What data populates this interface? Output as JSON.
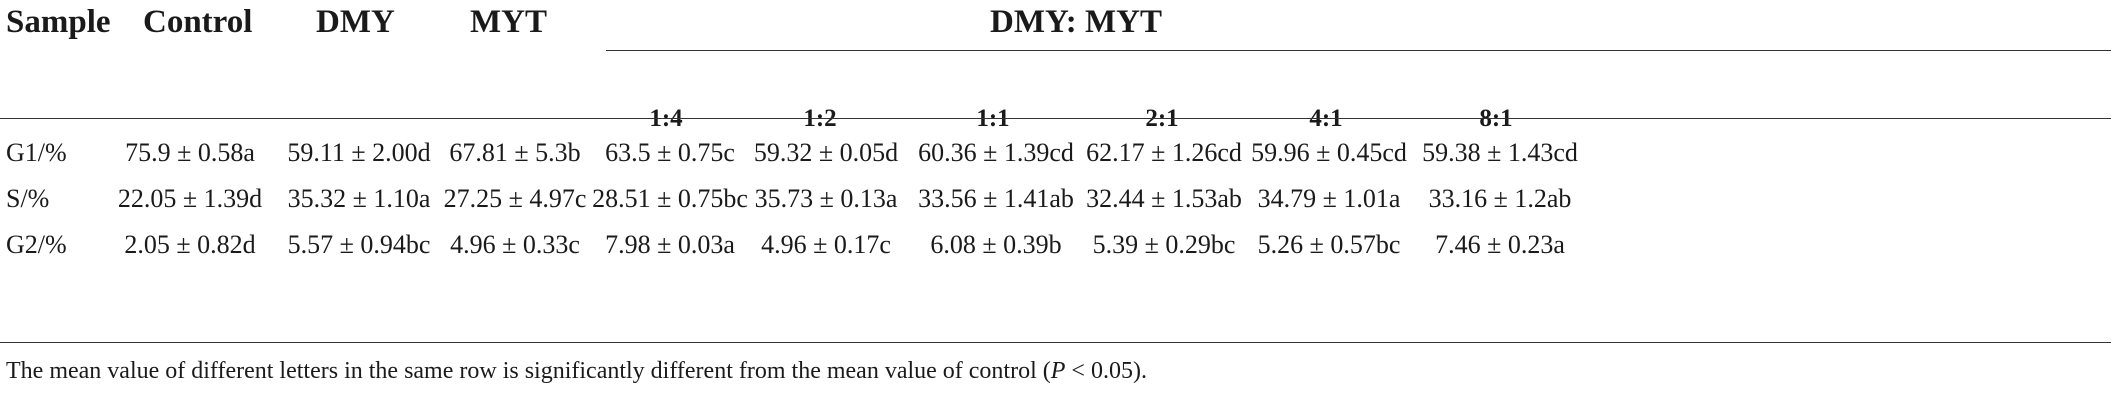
{
  "table": {
    "headers": {
      "sample": "Sample",
      "control": "Control",
      "dmy": "DMY",
      "myt": "MYT",
      "group": "DMY: MYT"
    },
    "ratios": [
      "1:4",
      "1:2",
      "1:1",
      "2:1",
      "4:1",
      "8:1"
    ],
    "rows": [
      {
        "label": "G1/%",
        "values": [
          "75.9 ± 0.58a",
          "59.11 ± 2.00d",
          "67.81 ± 5.3b",
          "63.5 ± 0.75c",
          "59.32 ± 0.05d",
          "60.36 ± 1.39cd",
          "62.17 ± 1.26cd",
          "59.96 ± 0.45cd",
          "59.38 ± 1.43cd"
        ]
      },
      {
        "label": "S/%",
        "values": [
          "22.05 ± 1.39d",
          "35.32 ± 1.10a",
          "27.25 ± 4.97c",
          "28.51 ± 0.75bc",
          "35.73 ± 0.13a",
          "33.56 ± 1.41ab",
          "32.44 ± 1.53ab",
          "34.79 ± 1.01a",
          "33.16 ± 1.2ab"
        ]
      },
      {
        "label": "G2/%",
        "values": [
          "2.05 ± 0.82d",
          "5.57 ± 0.94bc",
          "4.96 ± 0.33c",
          "7.98 ± 0.03a",
          "4.96 ± 0.17c",
          "6.08 ± 0.39b",
          "5.39 ± 0.29bc",
          "5.26 ± 0.57bc",
          "7.46 ± 0.23a"
        ]
      }
    ],
    "footnote": {
      "text": "The mean value of different letters in the same row is significantly different from the mean value of control (",
      "p_symbol": "P",
      "tail": " < 0.05)."
    }
  }
}
